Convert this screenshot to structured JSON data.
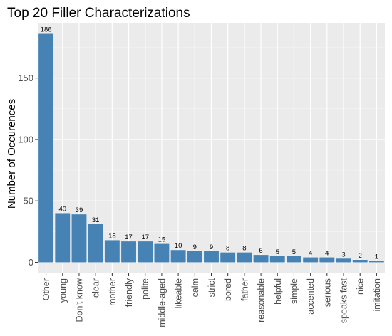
{
  "chart_data": {
    "type": "bar",
    "title": "Top 20 Filler Characterizations",
    "xlabel": "",
    "ylabel": "Number of Occurences",
    "categories": [
      "Other",
      "young",
      "Don't know",
      "clear",
      "mother",
      "friendly",
      "polite",
      "middle-aged",
      "likeable",
      "calm",
      "strict",
      "bored",
      "father",
      "reasonable",
      "helpful",
      "simple",
      "accented",
      "serious",
      "speaks fast",
      "nice",
      "imitation"
    ],
    "values": [
      186,
      40,
      39,
      31,
      18,
      17,
      17,
      15,
      10,
      9,
      9,
      8,
      8,
      6,
      5,
      5,
      4,
      4,
      3,
      2,
      1
    ],
    "yticks": [
      0,
      50,
      100,
      150
    ],
    "ylim": [
      -9,
      195
    ],
    "grid": true,
    "legend": "none",
    "colors": {
      "bar": "#4682b4",
      "panel": "#ebebeb",
      "grid_major": "#ffffff",
      "grid_minor": "#f5f5f5"
    }
  }
}
